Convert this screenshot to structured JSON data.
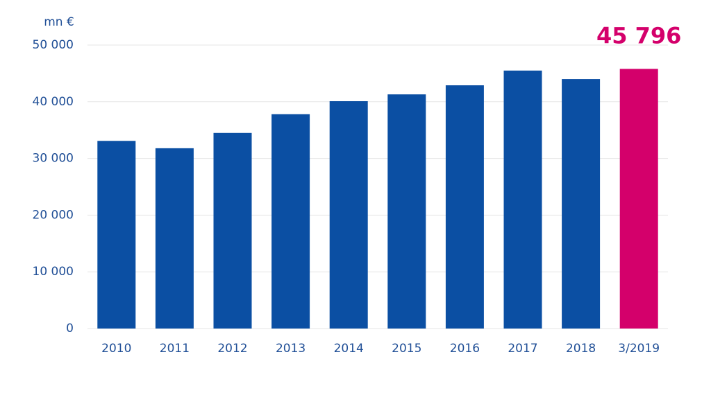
{
  "chart_data": {
    "type": "bar",
    "unit_label": "mn €",
    "categories": [
      "2010",
      "2011",
      "2012",
      "2013",
      "2014",
      "2015",
      "2016",
      "2017",
      "2018",
      "3/2019"
    ],
    "values": [
      33100,
      31800,
      34500,
      37800,
      40100,
      41300,
      42900,
      45500,
      44000,
      45796
    ],
    "value_labels": [
      null,
      null,
      null,
      null,
      null,
      null,
      null,
      null,
      null,
      "45 796"
    ],
    "colors": [
      "#0b4fa3",
      "#0b4fa3",
      "#0b4fa3",
      "#0b4fa3",
      "#0b4fa3",
      "#0b4fa3",
      "#0b4fa3",
      "#0b4fa3",
      "#0b4fa3",
      "#d4006b"
    ],
    "ylim": [
      0,
      50000
    ],
    "yticks": [
      0,
      {
        "value": 10000,
        "label": "10 000"
      },
      {
        "value": 20000,
        "label": "20 000"
      },
      {
        "value": 30000,
        "label": "30 000"
      },
      {
        "value": 40000,
        "label": "40 000"
      },
      {
        "value": 50000,
        "label": "50 000"
      }
    ],
    "grid": true
  }
}
